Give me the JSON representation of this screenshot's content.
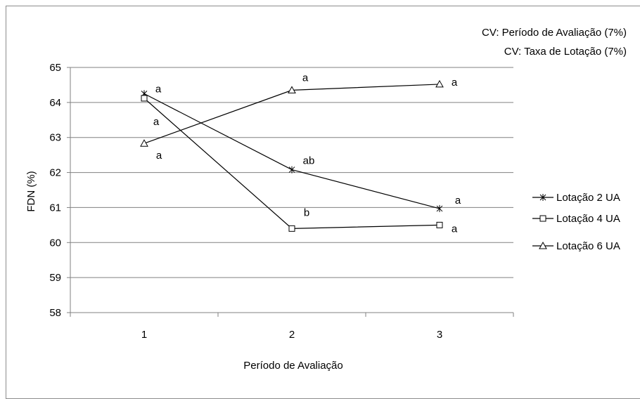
{
  "chart_data": {
    "type": "line",
    "title": "",
    "xlabel": "Período de Avaliação",
    "ylabel": "FDN (%)",
    "categories": [
      "1",
      "2",
      "3"
    ],
    "ylim": [
      58,
      65
    ],
    "yticks": [
      "58",
      "59",
      "60",
      "61",
      "62",
      "63",
      "64",
      "65"
    ],
    "grid": true,
    "legend_position": "right",
    "cv_notes": [
      "CV: Período de Avaliação (7%)",
      "CV: Taxa de Lotação (7%)"
    ],
    "series": [
      {
        "name": "Lotação 2 UA",
        "marker": "asterisk",
        "values": [
          64.25,
          62.08,
          60.97
        ],
        "letters": [
          "a",
          "ab",
          "a"
        ]
      },
      {
        "name": "Lotação 4 UA",
        "marker": "square",
        "values": [
          64.12,
          60.4,
          60.5
        ],
        "letters": [
          "a",
          "b",
          "a"
        ]
      },
      {
        "name": "Lotação 6 UA",
        "marker": "triangle",
        "values": [
          62.83,
          64.35,
          64.52
        ],
        "letters": [
          "a",
          "a",
          "a"
        ]
      }
    ]
  }
}
